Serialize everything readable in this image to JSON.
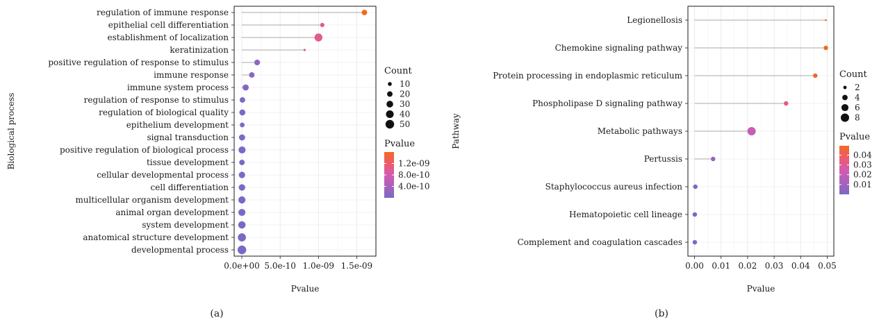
{
  "chart_data": [
    {
      "type": "scatter",
      "style": "lollipop",
      "panel_label": "(a)",
      "ylabel": "Biological process",
      "xlabel": "Pvalue",
      "xlim": [
        -1e-10,
        1.75e-09
      ],
      "xticks": [
        0,
        5e-10,
        1e-09,
        1.5e-09
      ],
      "xtick_labels": [
        "0.0e+00",
        "5.0e-10",
        "1.0e-09",
        "1.5e-09"
      ],
      "categories": [
        "regulation of immune response",
        "epithelial cell differentiation",
        "establishment of localization",
        "keratinization",
        "positive regulation of response to stimulus",
        "immune response",
        "immune system process",
        "regulation of response to stimulus",
        "regulation of biological quality",
        "epithelium development",
        "signal transduction",
        "positive regulation of biological process",
        "tissue development",
        "cellular developmental process",
        "cell differentiation",
        "multicellular organism development",
        "animal organ development",
        "system development",
        "anatomical structure development",
        "developmental process"
      ],
      "values": [
        1.6e-09,
        1.05e-09,
        1e-09,
        8.2e-10,
        2e-10,
        1.3e-10,
        5e-11,
        8e-12,
        7e-12,
        5e-12,
        3e-12,
        3e-12,
        2e-12,
        2e-12,
        2e-12,
        1e-12,
        1e-12,
        1e-12,
        1e-12,
        1e-12
      ],
      "counts": [
        20,
        12,
        42,
        3,
        22,
        20,
        25,
        20,
        24,
        15,
        25,
        33,
        20,
        27,
        28,
        34,
        33,
        36,
        44,
        50
      ],
      "size_legend": {
        "title": "Count",
        "values": [
          10,
          20,
          30,
          40,
          50
        ],
        "labels": [
          "10",
          "20",
          "30",
          "40",
          "50"
        ]
      },
      "color_legend": {
        "title": "Pvalue",
        "min": 0,
        "max": 1.6e-09,
        "ticks": [
          4e-10,
          8e-10,
          1.2e-09
        ],
        "tick_labels": [
          "4.0e-10",
          "8.0e-10",
          "1.2e-09"
        ]
      },
      "grid": true,
      "legend_position": "right"
    },
    {
      "type": "scatter",
      "style": "lollipop",
      "panel_label": "(b)",
      "ylabel": "Pathway",
      "xlabel": "Pvalue",
      "xlim": [
        -0.0025,
        0.0525
      ],
      "xticks": [
        0,
        0.01,
        0.02,
        0.03,
        0.04,
        0.05
      ],
      "xtick_labels": [
        "0.00",
        "0.01",
        "0.02",
        "0.03",
        "0.04",
        "0.05"
      ],
      "categories": [
        "Legionellosis",
        "Chemokine signaling pathway",
        "Protein processing in endoplasmic reticulum",
        "Phospholipase D signaling pathway",
        "Metabolic pathways",
        "Pertussis",
        "Staphylococcus aureus infection",
        "Hematopoietic cell lineage",
        "Complement and coagulation cascades"
      ],
      "values": [
        0.0495,
        0.0495,
        0.0455,
        0.0345,
        0.0215,
        0.007,
        0.0003,
        0.0001,
        0.0001
      ],
      "counts": [
        1,
        3,
        3,
        3,
        8,
        3,
        3,
        3,
        3
      ],
      "size_legend": {
        "title": "Count",
        "values": [
          2,
          4,
          6,
          8
        ],
        "labels": [
          "2",
          "4",
          "6",
          "8"
        ]
      },
      "color_legend": {
        "title": "Pvalue",
        "min": 0,
        "max": 0.0495,
        "ticks": [
          0.01,
          0.02,
          0.03,
          0.04
        ],
        "tick_labels": [
          "0.01",
          "0.02",
          "0.03",
          "0.04"
        ]
      },
      "grid": true,
      "legend_position": "right"
    }
  ]
}
